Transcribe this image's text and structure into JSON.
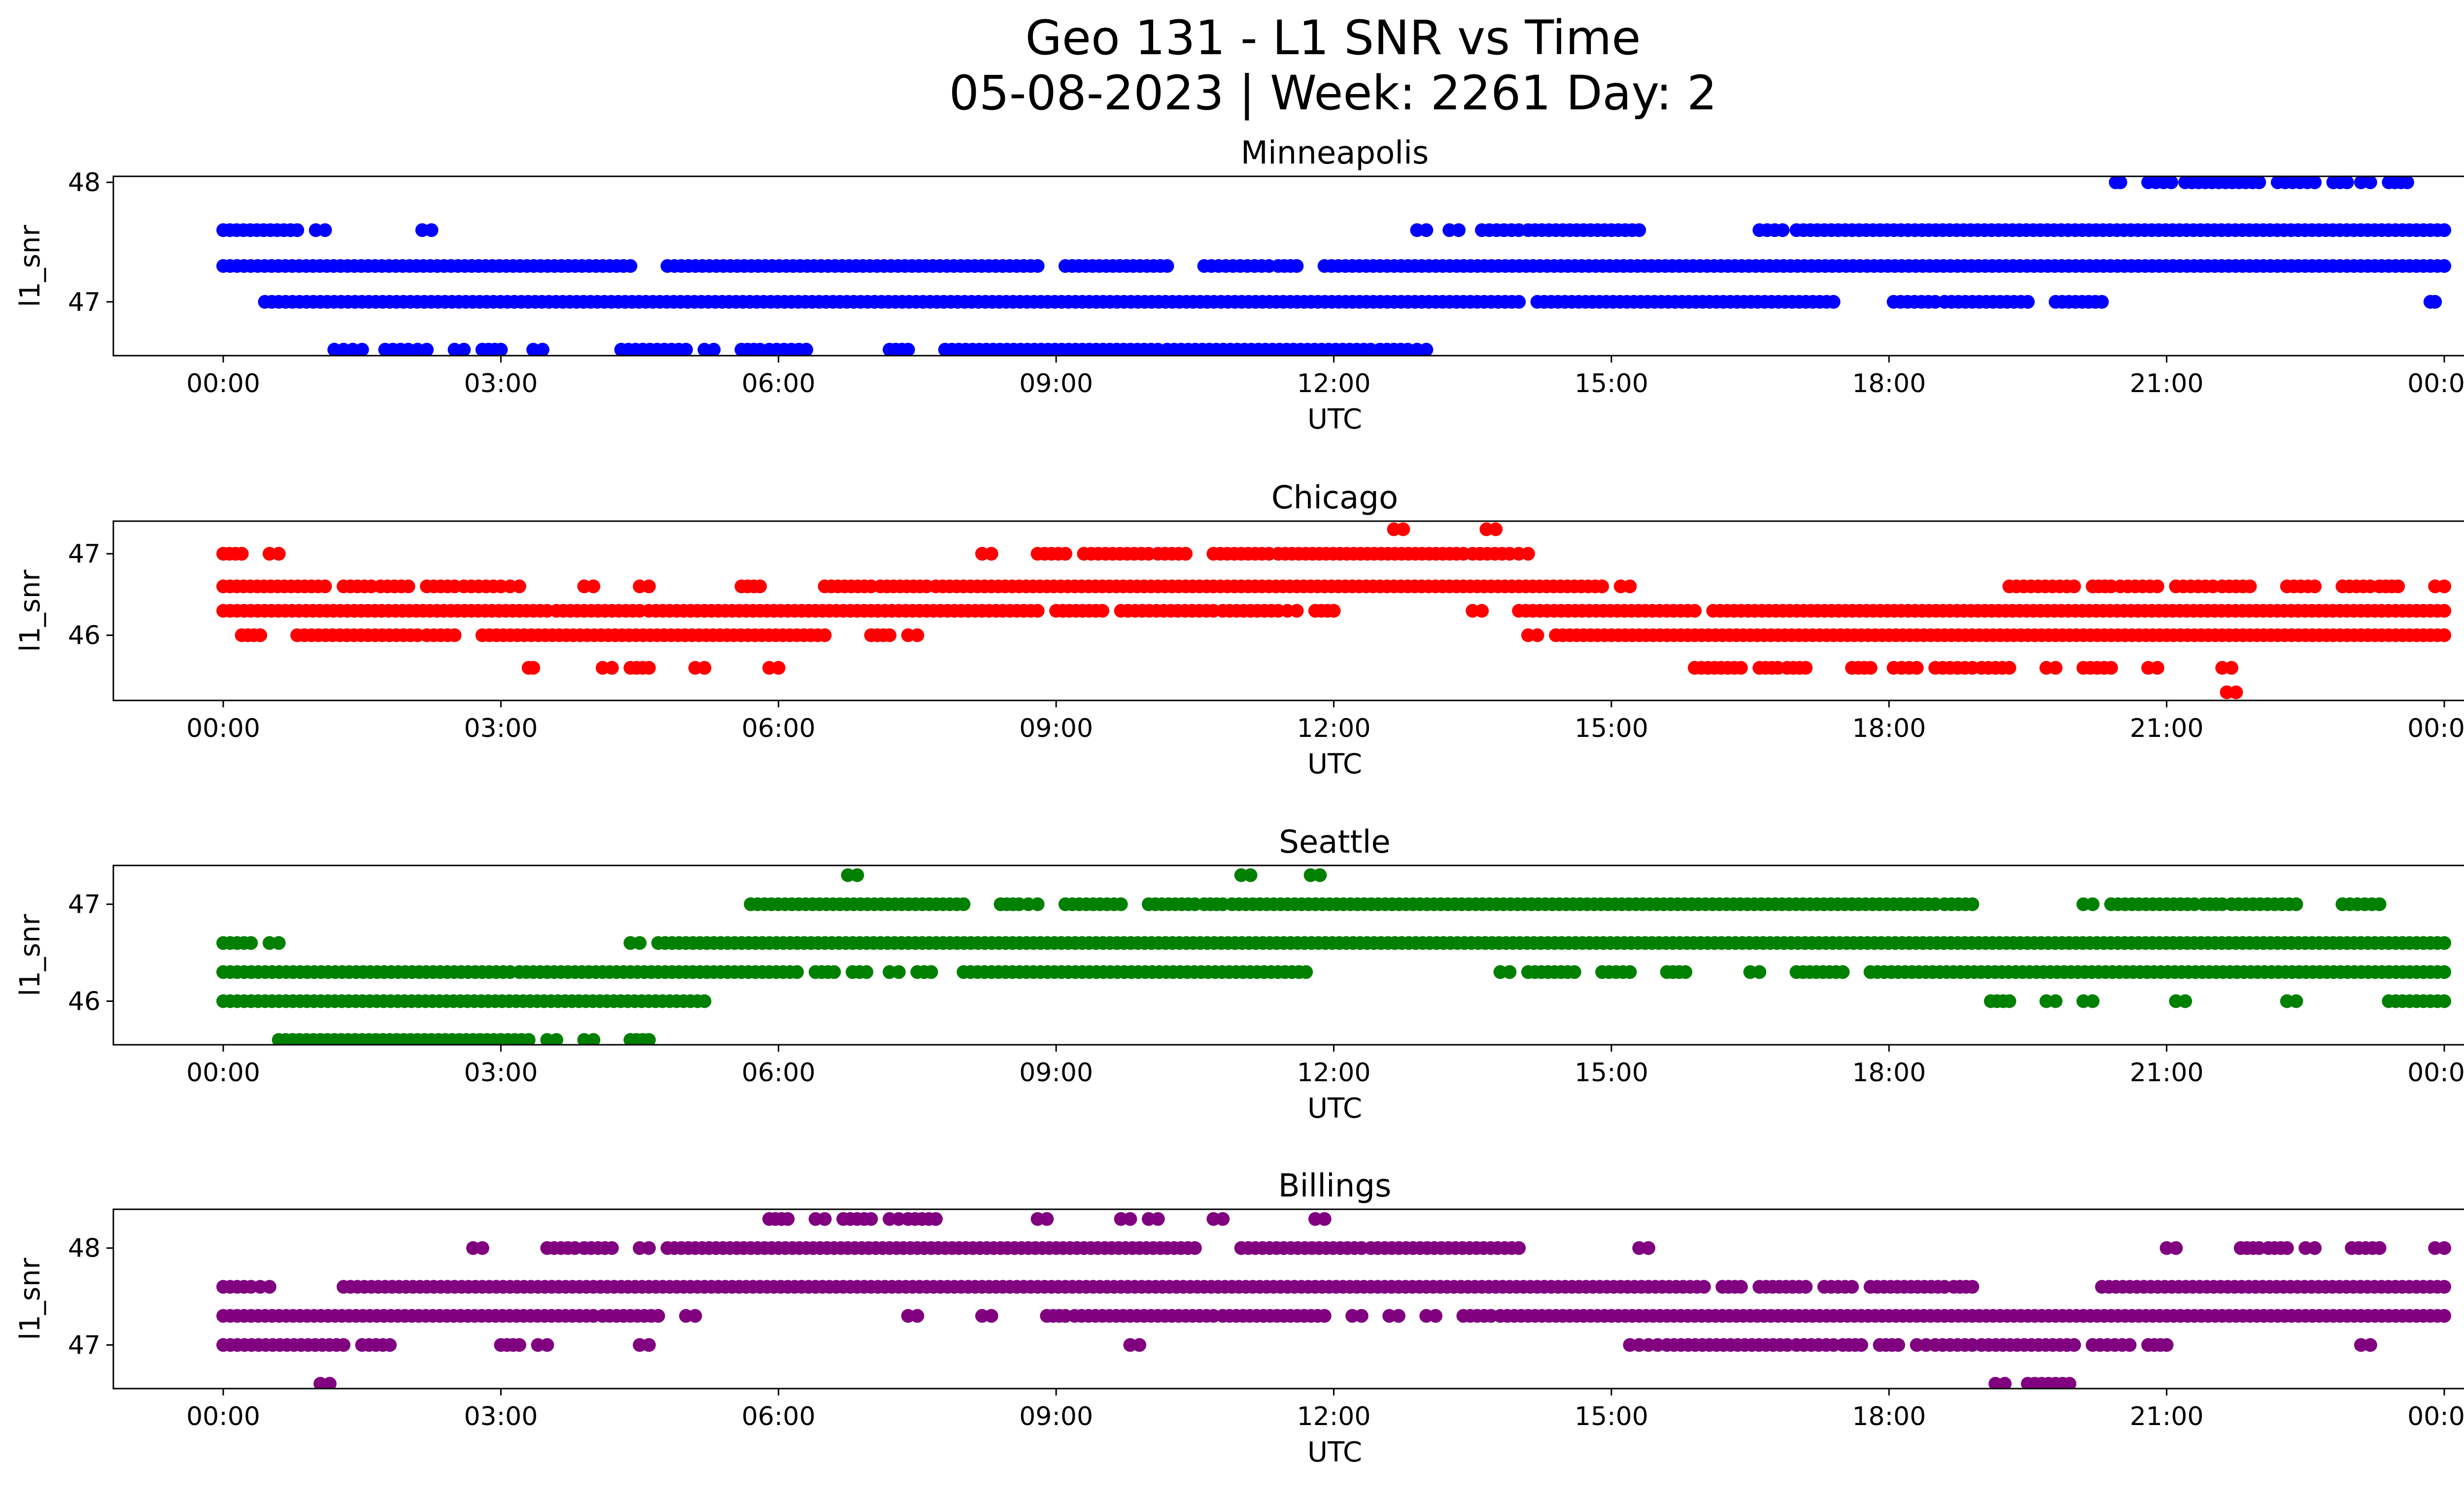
{
  "figure": {
    "title_line1": "Geo 131 - L1 SNR vs Time",
    "title_line2": "05-08-2023 | Week: 2261 Day: 2"
  },
  "chart_data": [
    {
      "type": "scatter",
      "title": "Minneapolis",
      "xlabel": "UTC",
      "ylabel": "l1_snr",
      "color": "#0000ff",
      "x_range_hours": [
        0,
        24
      ],
      "x_ticks": [
        "00:00",
        "03:00",
        "06:00",
        "09:00",
        "12:00",
        "15:00",
        "18:00",
        "21:00",
        "00:00"
      ],
      "ylim": [
        46.55,
        48.05
      ],
      "y_ticks": [
        47,
        48
      ],
      "grid": false,
      "levels": [
        {
          "y": 48.0,
          "segments": [
            [
              20.45,
              20.5
            ],
            [
              20.8,
              21.05
            ],
            [
              21.2,
              22.0
            ],
            [
              22.2,
              22.6
            ],
            [
              22.8,
              22.95
            ],
            [
              23.1,
              23.2
            ],
            [
              23.4,
              23.6
            ]
          ]
        },
        {
          "y": 47.6,
          "segments": [
            [
              0,
              0.8
            ],
            [
              1.0,
              1.1
            ],
            [
              2.15,
              2.25
            ],
            [
              12.9,
              13.0
            ],
            [
              13.25,
              13.35
            ],
            [
              13.6,
              14.0
            ],
            [
              14.1,
              15.3
            ],
            [
              16.6,
              16.85
            ],
            [
              17.0,
              24.0
            ]
          ]
        },
        {
          "y": 47.3,
          "segments": [
            [
              0,
              4.4
            ],
            [
              4.8,
              8.8
            ],
            [
              9.1,
              10.2
            ],
            [
              10.6,
              11.3
            ],
            [
              11.4,
              11.6
            ],
            [
              11.9,
              24.0
            ]
          ]
        },
        {
          "y": 47.0,
          "segments": [
            [
              0.45,
              14.0
            ],
            [
              14.2,
              17.4
            ],
            [
              18.05,
              18.5
            ],
            [
              18.6,
              19.5
            ],
            [
              19.8,
              20.3
            ],
            [
              23.85,
              23.9
            ]
          ]
        },
        {
          "y": 46.6,
          "segments": [
            [
              1.2,
              1.3
            ],
            [
              1.4,
              1.5
            ],
            [
              1.75,
              2.0
            ],
            [
              2.1,
              2.2
            ],
            [
              2.5,
              2.6
            ],
            [
              2.8,
              3.0
            ],
            [
              3.35,
              3.45
            ],
            [
              4.3,
              5.0
            ],
            [
              5.2,
              5.3
            ],
            [
              5.6,
              5.8
            ],
            [
              5.9,
              6.3
            ],
            [
              7.2,
              7.4
            ],
            [
              7.8,
              10.1
            ],
            [
              10.2,
              12.4
            ],
            [
              12.5,
              12.8
            ],
            [
              12.9,
              13.0
            ]
          ]
        }
      ]
    },
    {
      "type": "scatter",
      "title": "Chicago",
      "xlabel": "UTC",
      "ylabel": "l1_snr",
      "color": "#ff0000",
      "x_range_hours": [
        0,
        24
      ],
      "x_ticks": [
        "00:00",
        "03:00",
        "06:00",
        "09:00",
        "12:00",
        "15:00",
        "18:00",
        "21:00",
        "00:00"
      ],
      "ylim": [
        45.2,
        47.4
      ],
      "y_ticks": [
        46,
        47
      ],
      "grid": false,
      "levels": [
        {
          "y": 47.3,
          "segments": [
            [
              12.65,
              12.75
            ],
            [
              13.65,
              13.75
            ]
          ]
        },
        {
          "y": 47.0,
          "segments": [
            [
              0,
              0.2
            ],
            [
              0.5,
              0.6
            ],
            [
              8.2,
              8.3
            ],
            [
              8.8,
              9.1
            ],
            [
              9.3,
              10.0
            ],
            [
              10.1,
              10.4
            ],
            [
              10.7,
              11.3
            ],
            [
              11.4,
              13.4
            ],
            [
              13.5,
              13.9
            ],
            [
              14.0,
              14.1
            ]
          ]
        },
        {
          "y": 46.6,
          "segments": [
            [
              0,
              1.1
            ],
            [
              1.3,
              1.6
            ],
            [
              1.7,
              2.0
            ],
            [
              2.2,
              2.5
            ],
            [
              2.6,
              3.0
            ],
            [
              3.1,
              3.2
            ],
            [
              3.9,
              4.0
            ],
            [
              4.5,
              4.6
            ],
            [
              5.6,
              5.8
            ],
            [
              6.5,
              7.0
            ],
            [
              7.1,
              7.6
            ],
            [
              7.7,
              14.9
            ],
            [
              15.1,
              15.2
            ],
            [
              19.3,
              20.0
            ],
            [
              20.2,
              20.4
            ],
            [
              20.5,
              20.9
            ],
            [
              21.1,
              21.5
            ],
            [
              21.6,
              21.9
            ],
            [
              22.3,
              22.6
            ],
            [
              22.9,
              23.2
            ],
            [
              23.3,
              23.5
            ],
            [
              23.9,
              24.0
            ]
          ]
        },
        {
          "y": 46.3,
          "segments": [
            [
              0,
              3.5
            ],
            [
              3.6,
              4.5
            ],
            [
              4.6,
              8.8
            ],
            [
              9.0,
              9.5
            ],
            [
              9.7,
              10.7
            ],
            [
              10.8,
              11.4
            ],
            [
              11.5,
              11.6
            ],
            [
              11.8,
              12.0
            ],
            [
              13.5,
              13.6
            ],
            [
              14.0,
              15.9
            ],
            [
              16.1,
              24.0
            ]
          ]
        },
        {
          "y": 46.0,
          "segments": [
            [
              0.2,
              0.4
            ],
            [
              0.8,
              2.1
            ],
            [
              2.2,
              2.5
            ],
            [
              2.8,
              6.5
            ],
            [
              7.0,
              7.2
            ],
            [
              7.4,
              7.5
            ],
            [
              14.1,
              14.2
            ],
            [
              14.4,
              24.0
            ]
          ]
        },
        {
          "y": 45.6,
          "segments": [
            [
              3.3,
              3.35
            ],
            [
              4.1,
              4.2
            ],
            [
              4.4,
              4.6
            ],
            [
              5.1,
              5.2
            ],
            [
              5.9,
              6.0
            ],
            [
              15.9,
              16.4
            ],
            [
              16.6,
              16.8
            ],
            [
              16.9,
              17.1
            ],
            [
              17.6,
              17.8
            ],
            [
              18.05,
              18.3
            ],
            [
              18.5,
              18.9
            ],
            [
              19.0,
              19.3
            ],
            [
              19.7,
              19.8
            ],
            [
              20.1,
              20.4
            ],
            [
              20.8,
              20.9
            ],
            [
              21.6,
              21.7
            ]
          ]
        },
        {
          "y": 45.3,
          "segments": [
            [
              21.65,
              21.75
            ]
          ]
        }
      ]
    },
    {
      "type": "scatter",
      "title": "Seattle",
      "xlabel": "UTC",
      "ylabel": "l1_snr",
      "color": "#008000",
      "x_range_hours": [
        0,
        24
      ],
      "x_ticks": [
        "00:00",
        "03:00",
        "06:00",
        "09:00",
        "12:00",
        "15:00",
        "18:00",
        "21:00",
        "00:00"
      ],
      "ylim": [
        45.55,
        47.4
      ],
      "y_ticks": [
        46,
        47
      ],
      "grid": false,
      "levels": [
        {
          "y": 47.3,
          "segments": [
            [
              6.75,
              6.85
            ],
            [
              11.0,
              11.1
            ],
            [
              11.75,
              11.85
            ]
          ]
        },
        {
          "y": 47.0,
          "segments": [
            [
              5.7,
              8.0
            ],
            [
              8.4,
              8.6
            ],
            [
              8.7,
              8.8
            ],
            [
              9.1,
              9.7
            ],
            [
              10.0,
              10.5
            ],
            [
              10.6,
              10.8
            ],
            [
              10.9,
              18.5
            ],
            [
              18.6,
              18.9
            ],
            [
              20.1,
              20.2
            ],
            [
              20.4,
              21.3
            ],
            [
              21.4,
              21.6
            ],
            [
              21.7,
              22.4
            ],
            [
              22.9,
              23.3
            ]
          ]
        },
        {
          "y": 46.6,
          "segments": [
            [
              0,
              0.3
            ],
            [
              0.5,
              0.6
            ],
            [
              4.4,
              4.5
            ],
            [
              4.7,
              24.0
            ]
          ]
        },
        {
          "y": 46.3,
          "segments": [
            [
              0,
              3.1
            ],
            [
              3.2,
              6.2
            ],
            [
              6.4,
              6.6
            ],
            [
              6.8,
              6.95
            ],
            [
              7.2,
              7.3
            ],
            [
              7.5,
              7.65
            ],
            [
              8.0,
              11.7
            ],
            [
              13.8,
              13.9
            ],
            [
              14.1,
              14.6
            ],
            [
              14.9,
              15.2
            ],
            [
              15.6,
              15.8
            ],
            [
              16.5,
              16.6
            ],
            [
              17.0,
              17.5
            ],
            [
              17.8,
              24.0
            ]
          ]
        },
        {
          "y": 46.0,
          "segments": [
            [
              0,
              5.2
            ],
            [
              19.1,
              19.3
            ],
            [
              19.7,
              19.8
            ],
            [
              20.1,
              20.2
            ],
            [
              21.1,
              21.2
            ],
            [
              22.3,
              22.4
            ],
            [
              23.4,
              24.0
            ]
          ]
        },
        {
          "y": 45.6,
          "segments": [
            [
              0.6,
              3.3
            ],
            [
              3.5,
              3.6
            ],
            [
              3.9,
              4.0
            ],
            [
              4.4,
              4.6
            ]
          ]
        }
      ]
    },
    {
      "type": "scatter",
      "title": "Billings",
      "xlabel": "UTC",
      "ylabel": "l1_snr",
      "color": "#800080",
      "x_range_hours": [
        0,
        24
      ],
      "x_ticks": [
        "00:00",
        "03:00",
        "06:00",
        "09:00",
        "12:00",
        "15:00",
        "18:00",
        "21:00",
        "00:00"
      ],
      "ylim": [
        46.55,
        48.4
      ],
      "y_ticks": [
        47,
        48
      ],
      "grid": false,
      "levels": [
        {
          "y": 48.3,
          "segments": [
            [
              5.9,
              6.1
            ],
            [
              6.4,
              6.5
            ],
            [
              6.7,
              7.0
            ],
            [
              7.2,
              7.3
            ],
            [
              7.4,
              7.7
            ],
            [
              8.8,
              8.9
            ],
            [
              9.7,
              9.8
            ],
            [
              10.0,
              10.1
            ],
            [
              10.7,
              10.8
            ],
            [
              11.8,
              11.9
            ]
          ]
        },
        {
          "y": 48.0,
          "segments": [
            [
              2.7,
              2.8
            ],
            [
              3.5,
              3.8
            ],
            [
              3.9,
              4.2
            ],
            [
              4.5,
              4.6
            ],
            [
              4.8,
              10.5
            ],
            [
              11.0,
              12.3
            ],
            [
              12.4,
              14.0
            ],
            [
              15.3,
              15.4
            ],
            [
              21.0,
              21.1
            ],
            [
              21.8,
              22.0
            ],
            [
              22.1,
              22.3
            ],
            [
              22.5,
              22.6
            ],
            [
              23.0,
              23.3
            ],
            [
              23.9,
              24.0
            ]
          ]
        },
        {
          "y": 47.6,
          "segments": [
            [
              0,
              0.3
            ],
            [
              0.4,
              0.5
            ],
            [
              1.3,
              16.0
            ],
            [
              16.2,
              16.4
            ],
            [
              16.6,
              17.1
            ],
            [
              17.3,
              17.6
            ],
            [
              17.8,
              18.6
            ],
            [
              18.7,
              18.9
            ],
            [
              20.3,
              24.0
            ]
          ]
        },
        {
          "y": 47.3,
          "segments": [
            [
              0,
              4.0
            ],
            [
              4.1,
              4.7
            ],
            [
              5.0,
              5.1
            ],
            [
              7.4,
              7.5
            ],
            [
              8.2,
              8.3
            ],
            [
              8.9,
              9.1
            ],
            [
              9.2,
              10.7
            ],
            [
              10.8,
              11.9
            ],
            [
              12.2,
              12.3
            ],
            [
              12.6,
              12.7
            ],
            [
              13.0,
              13.1
            ],
            [
              13.4,
              13.7
            ],
            [
              13.8,
              24.0
            ]
          ]
        },
        {
          "y": 47.0,
          "segments": [
            [
              0,
              1.3
            ],
            [
              1.5,
              1.8
            ],
            [
              3.0,
              3.2
            ],
            [
              3.4,
              3.5
            ],
            [
              4.5,
              4.6
            ],
            [
              9.8,
              9.9
            ],
            [
              15.2,
              15.3
            ],
            [
              15.4,
              15.5
            ],
            [
              15.6,
              16.9
            ],
            [
              17.0,
              17.4
            ],
            [
              17.5,
              17.7
            ],
            [
              17.9,
              18.1
            ],
            [
              18.3,
              18.4
            ],
            [
              18.5,
              18.9
            ],
            [
              19.0,
              20.0
            ],
            [
              20.2,
              20.6
            ],
            [
              20.8,
              21.0
            ],
            [
              23.1,
              23.2
            ]
          ]
        },
        {
          "y": 46.6,
          "segments": [
            [
              1.05,
              1.15
            ],
            [
              19.15,
              19.25
            ],
            [
              19.5,
              19.95
            ]
          ]
        }
      ]
    }
  ]
}
